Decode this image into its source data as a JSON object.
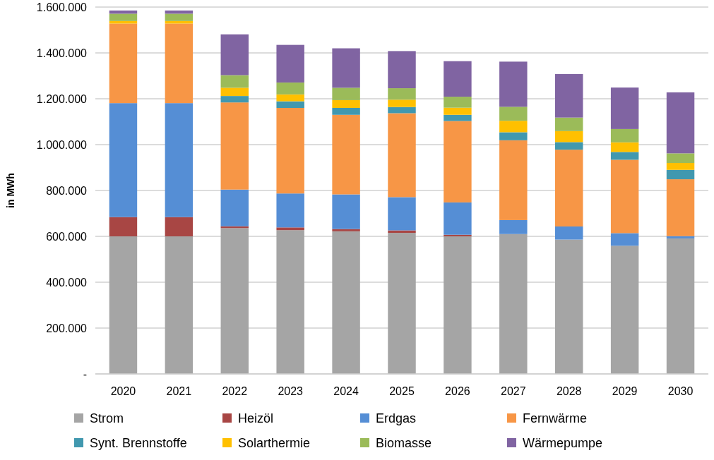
{
  "chart_data": {
    "type": "bar",
    "stacked": true,
    "ylabel": "in MWh",
    "categories": [
      "2020",
      "2021",
      "2022",
      "2023",
      "2024",
      "2025",
      "2026",
      "2027",
      "2028",
      "2029",
      "2030"
    ],
    "series": [
      {
        "name": "Strom",
        "color": "#a5a5a5",
        "values": [
          600000,
          600000,
          636000,
          627000,
          622000,
          615000,
          600000,
          610000,
          586000,
          559000,
          591000
        ]
      },
      {
        "name": "Heizöl",
        "color": "#a84644",
        "values": [
          84000,
          84000,
          8000,
          12000,
          10000,
          11000,
          7000,
          0,
          0,
          0,
          0
        ]
      },
      {
        "name": "Erdgas",
        "color": "#558ed5",
        "values": [
          497000,
          497000,
          160000,
          148000,
          151000,
          145000,
          141000,
          61000,
          57000,
          55000,
          10000
        ]
      },
      {
        "name": "Fernwärme",
        "color": "#f79646",
        "values": [
          347000,
          347000,
          380000,
          373000,
          347000,
          366000,
          355000,
          348000,
          335000,
          320000,
          248000
        ]
      },
      {
        "name": "Synt. Brennstoffe",
        "color": "#4198af",
        "values": [
          0,
          0,
          28000,
          29000,
          30000,
          27000,
          27000,
          35000,
          33000,
          34000,
          41000
        ]
      },
      {
        "name": "Solarthermie",
        "color": "#ffc000",
        "values": [
          11000,
          11000,
          36000,
          30000,
          34000,
          32000,
          31000,
          50000,
          48000,
          42000,
          30000
        ]
      },
      {
        "name": "Biomasse",
        "color": "#9bbb59",
        "values": [
          32000,
          32000,
          55000,
          52000,
          54000,
          50000,
          48000,
          61000,
          59000,
          58000,
          42000
        ]
      },
      {
        "name": "Wärmepumpe",
        "color": "#8064a2",
        "values": [
          14000,
          14000,
          178000,
          164000,
          172000,
          162000,
          155000,
          197000,
          190000,
          181000,
          266000
        ]
      }
    ],
    "ylim": [
      0,
      1600000
    ],
    "yticks": [
      {
        "value": 0,
        "label": "-"
      },
      {
        "value": 200000,
        "label": "200.000"
      },
      {
        "value": 400000,
        "label": "400.000"
      },
      {
        "value": 600000,
        "label": "600.000"
      },
      {
        "value": 800000,
        "label": "800.000"
      },
      {
        "value": 1000000,
        "label": "1.000.000"
      },
      {
        "value": 1200000,
        "label": "1.200.000"
      },
      {
        "value": 1400000,
        "label": "1.400.000"
      },
      {
        "value": 1600000,
        "label": "1.600.000"
      }
    ],
    "grid": "y",
    "legend": "bottom"
  }
}
